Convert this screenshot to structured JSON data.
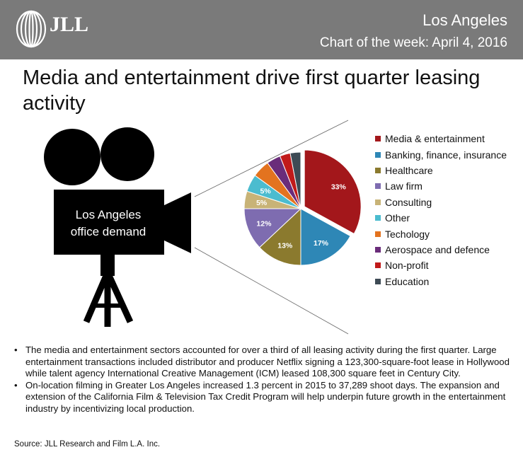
{
  "header": {
    "brand": "JLL",
    "city": "Los Angeles",
    "subtitle": "Chart of the week: April 4, 2016"
  },
  "title": "Media and entertainment drive first quarter leasing activity",
  "camera": {
    "label_line1": "Los Angeles",
    "label_line2": "office demand"
  },
  "chart_data": {
    "type": "pie",
    "title": "",
    "categories": [
      "Media & entertainment",
      "Banking, finance, insurance",
      "Healthcare",
      "Law firm",
      "Consulting",
      "Other",
      "Techology",
      "Aerospace and defence",
      "Non-profit",
      "Education"
    ],
    "values": [
      33,
      17,
      13,
      12,
      5,
      5,
      5,
      4,
      3,
      3
    ],
    "data_labels": [
      "33%",
      "17%",
      "13%",
      "12%",
      "5%",
      "5%",
      "",
      "",
      "",
      ""
    ],
    "colors": [
      "#a3171b",
      "#2e87b6",
      "#8b7a2e",
      "#7e6cb0",
      "#c8b377",
      "#4bbccf",
      "#e3731f",
      "#6a2c7a",
      "#c11a1a",
      "#3e4b55"
    ],
    "legend_position": "right"
  },
  "bullets": [
    "The media and entertainment sectors accounted for over a third of all leasing activity during the first quarter. Large entertainment transactions included distributor and producer Netflix signing a 123,300-square-foot lease in Hollywood while talent agency International Creative Management (ICM) leased 108,300 square feet in Century City.",
    "On-location filming in Greater Los Angeles increased 1.3 percent in 2015 to 37,289 shoot days. The expansion and extension of the California Film & Television Tax Credit Program will help underpin future growth in the entertainment industry by incentivizing local production."
  ],
  "source": "Source: JLL Research and Film L.A. Inc."
}
